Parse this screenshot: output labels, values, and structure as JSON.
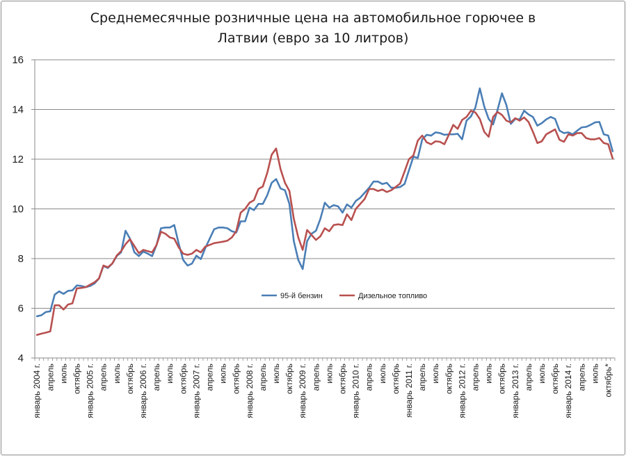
{
  "chart_data": {
    "type": "line",
    "title_line1": "Среднемесячные розничные цена на автомобильное горючее в",
    "title_line2": "Латвии (евро за 10 литров)",
    "ylim": [
      4,
      16
    ],
    "yticks": [
      4,
      6,
      8,
      10,
      12,
      14,
      16
    ],
    "grid": true,
    "legend_position": "center-left",
    "xlabels": [
      {
        "i": 0,
        "label": "январь 2004 г."
      },
      {
        "i": 3,
        "label": "апрель"
      },
      {
        "i": 6,
        "label": "июль"
      },
      {
        "i": 9,
        "label": "октябрь"
      },
      {
        "i": 12,
        "label": "январь 2005 г."
      },
      {
        "i": 15,
        "label": "апрель"
      },
      {
        "i": 18,
        "label": "июль"
      },
      {
        "i": 21,
        "label": "октябрь"
      },
      {
        "i": 24,
        "label": "январь 2006 г."
      },
      {
        "i": 27,
        "label": "апрель"
      },
      {
        "i": 30,
        "label": "июль"
      },
      {
        "i": 33,
        "label": "октябрь"
      },
      {
        "i": 36,
        "label": "январь 2007 г."
      },
      {
        "i": 39,
        "label": "апрель"
      },
      {
        "i": 42,
        "label": "июль"
      },
      {
        "i": 45,
        "label": "октябрь"
      },
      {
        "i": 48,
        "label": "январь 2008 г."
      },
      {
        "i": 51,
        "label": "апрель"
      },
      {
        "i": 54,
        "label": "июль"
      },
      {
        "i": 57,
        "label": "октябрь"
      },
      {
        "i": 60,
        "label": "январь 2009 г."
      },
      {
        "i": 63,
        "label": "апрель"
      },
      {
        "i": 66,
        "label": "июль"
      },
      {
        "i": 69,
        "label": "октябрь"
      },
      {
        "i": 72,
        "label": "январь 2010 г."
      },
      {
        "i": 75,
        "label": "апрель"
      },
      {
        "i": 78,
        "label": "июль"
      },
      {
        "i": 81,
        "label": "октябрь"
      },
      {
        "i": 84,
        "label": "январь 2011 г."
      },
      {
        "i": 87,
        "label": "апрель"
      },
      {
        "i": 90,
        "label": "июль"
      },
      {
        "i": 93,
        "label": "октябрь"
      },
      {
        "i": 96,
        "label": "январь 2012 г."
      },
      {
        "i": 99,
        "label": "апрель"
      },
      {
        "i": 102,
        "label": "июль"
      },
      {
        "i": 105,
        "label": "октябрь"
      },
      {
        "i": 108,
        "label": "январь 2013 г."
      },
      {
        "i": 111,
        "label": "апрель"
      },
      {
        "i": 114,
        "label": "июль"
      },
      {
        "i": 117,
        "label": "октябрь"
      },
      {
        "i": 120,
        "label": "январь 2014 г."
      },
      {
        "i": 123,
        "label": "апрель"
      },
      {
        "i": 126,
        "label": "июль"
      },
      {
        "i": 129,
        "label": "октябрь*"
      }
    ],
    "series": [
      {
        "name": "95-й бензин",
        "color": "#4a7eb5",
        "values": [
          5.68,
          5.72,
          5.85,
          5.88,
          6.55,
          6.68,
          6.58,
          6.7,
          6.72,
          6.92,
          6.9,
          6.85,
          6.9,
          7.0,
          7.2,
          7.7,
          7.62,
          7.8,
          8.1,
          8.25,
          9.12,
          8.8,
          8.25,
          8.1,
          8.28,
          8.2,
          8.1,
          8.55,
          9.22,
          9.25,
          9.25,
          9.35,
          8.6,
          7.95,
          7.72,
          7.8,
          8.12,
          7.98,
          8.42,
          8.8,
          9.18,
          9.25,
          9.25,
          9.22,
          9.1,
          9.05,
          9.5,
          9.5,
          10.05,
          9.95,
          10.2,
          10.2,
          10.55,
          11.05,
          11.2,
          10.82,
          10.75,
          10.2,
          8.7,
          7.95,
          7.58,
          8.7,
          9.0,
          9.12,
          9.6,
          10.25,
          10.05,
          10.15,
          10.1,
          9.85,
          10.18,
          10.05,
          10.32,
          10.45,
          10.65,
          10.85,
          11.1,
          11.1,
          11.0,
          11.05,
          10.85,
          10.85,
          10.88,
          11.0,
          11.55,
          12.1,
          12.05,
          12.8,
          12.98,
          12.95,
          13.08,
          13.05,
          12.98,
          13.0,
          13.0,
          13.02,
          12.8,
          13.55,
          13.72,
          14.08,
          14.85,
          14.12,
          13.62,
          13.4,
          13.98,
          14.65,
          14.18,
          13.42,
          13.62,
          13.6,
          13.95,
          13.8,
          13.7,
          13.35,
          13.45,
          13.6,
          13.7,
          13.62,
          13.15,
          13.05,
          13.08,
          13.0,
          13.15,
          13.28,
          13.3,
          13.38,
          13.48,
          13.5,
          13.0,
          12.95,
          12.32
        ]
      },
      {
        "name": "Дизельное топливо",
        "color": "#b8504f",
        "values": [
          4.93,
          4.98,
          5.02,
          5.07,
          6.12,
          6.12,
          5.95,
          6.15,
          6.2,
          6.8,
          6.82,
          6.85,
          6.95,
          7.05,
          7.2,
          7.72,
          7.65,
          7.8,
          8.12,
          8.3,
          8.58,
          8.78,
          8.5,
          8.22,
          8.35,
          8.3,
          8.25,
          8.55,
          9.08,
          9.0,
          8.85,
          8.8,
          8.45,
          8.2,
          8.15,
          8.2,
          8.35,
          8.25,
          8.48,
          8.55,
          8.62,
          8.65,
          8.68,
          8.72,
          8.85,
          9.1,
          9.85,
          10.0,
          10.25,
          10.35,
          10.8,
          10.9,
          11.45,
          12.18,
          12.43,
          11.6,
          11.05,
          10.72,
          9.6,
          8.85,
          8.35,
          9.15,
          8.95,
          8.75,
          8.9,
          9.22,
          9.1,
          9.35,
          9.38,
          9.35,
          9.78,
          9.55,
          10.0,
          10.2,
          10.4,
          10.8,
          10.8,
          10.72,
          10.78,
          10.68,
          10.75,
          10.88,
          11.02,
          11.5,
          12.0,
          12.15,
          12.75,
          12.95,
          12.68,
          12.6,
          12.72,
          12.7,
          12.6,
          12.98,
          13.38,
          13.22,
          13.58,
          13.7,
          13.95,
          13.88,
          13.62,
          13.1,
          12.9,
          13.7,
          13.9,
          13.78,
          13.55,
          13.48,
          13.65,
          13.55,
          13.68,
          13.5,
          13.1,
          12.65,
          12.72,
          13.0,
          13.1,
          13.2,
          12.78,
          12.7,
          13.0,
          12.95,
          13.05,
          13.05,
          12.85,
          12.8,
          12.8,
          12.85,
          12.65,
          12.6,
          12.03
        ]
      }
    ]
  }
}
